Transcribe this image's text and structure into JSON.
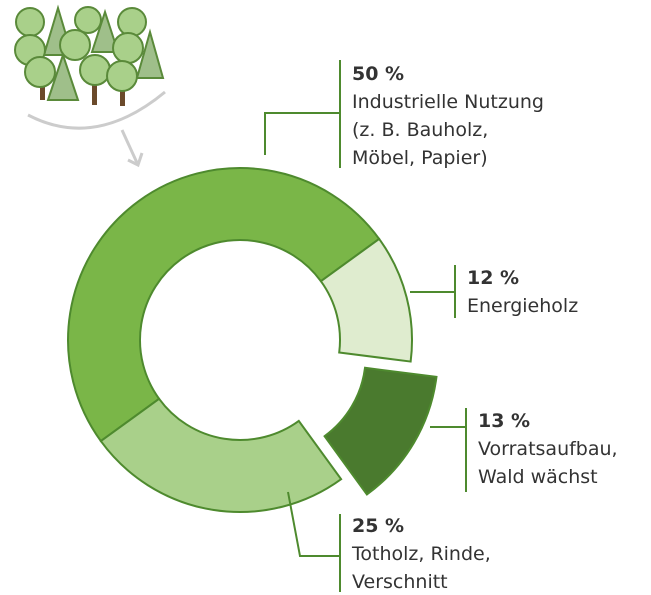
{
  "chart_data": {
    "type": "donut",
    "categories": [
      [
        "Industrielle Nutzung",
        "(z. B. Bauholz,",
        "Möbel, Papier)"
      ],
      [
        "Energieholz"
      ],
      [
        "Vorratsaufbau,",
        "Wald wächst"
      ],
      [
        "Totholz, Rinde,",
        "Verschnitt"
      ]
    ],
    "values": [
      50,
      12,
      13,
      25
    ],
    "value_labels": [
      "50 %",
      "12 %",
      "13 %",
      "25 %"
    ],
    "colors": [
      "#7ab648",
      "#dfeccf",
      "#4a7a2e",
      "#a9d08a"
    ]
  }
}
